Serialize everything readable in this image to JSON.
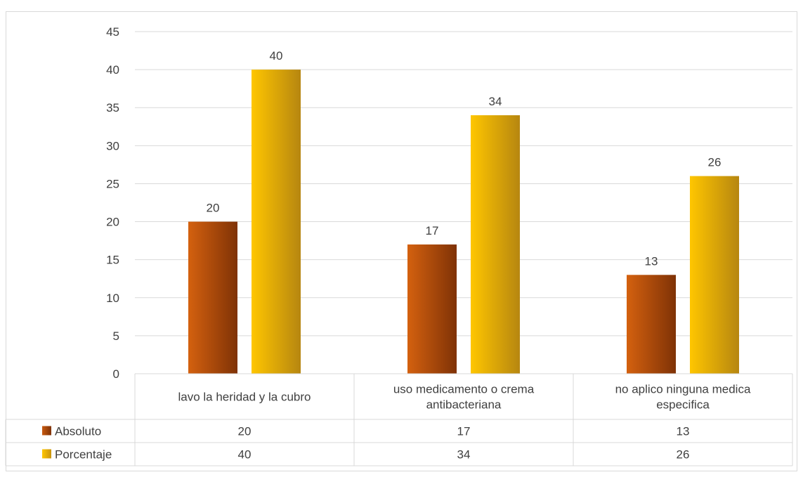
{
  "chart_data": {
    "type": "bar",
    "categories": [
      [
        "lavo la heridad y la cubro"
      ],
      [
        "uso medicamento o crema",
        "antibacteriana"
      ],
      [
        "no aplico ninguna medica",
        "especifica"
      ]
    ],
    "series": [
      {
        "name": "Absoluto",
        "values": [
          20,
          17,
          13
        ],
        "color": "#c55a11"
      },
      {
        "name": "Porcentaje",
        "values": [
          40,
          34,
          26
        ],
        "color": "#ffc000"
      }
    ],
    "ylim": [
      0,
      45
    ],
    "yticks": [
      0,
      5,
      10,
      15,
      20,
      25,
      30,
      35,
      40,
      45
    ],
    "grid": true,
    "data_labels": true,
    "legend": "data-table"
  }
}
